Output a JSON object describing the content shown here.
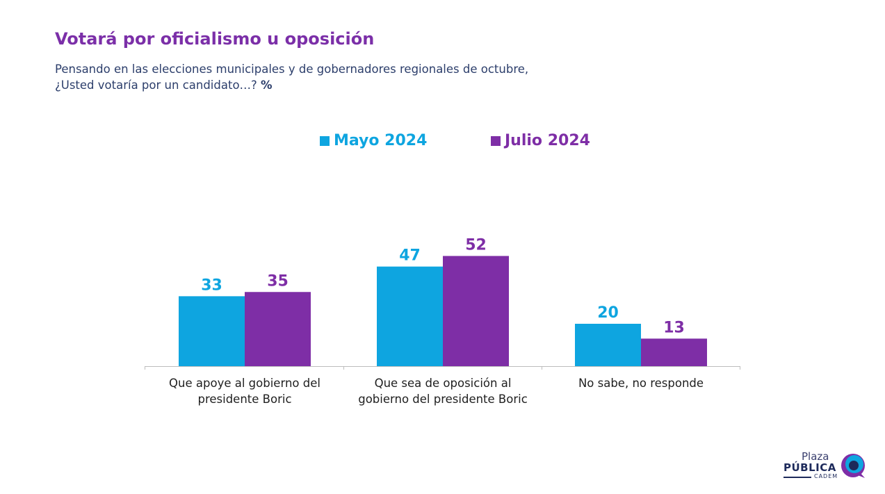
{
  "header": {
    "title": "Votará por oficialismo u oposición",
    "subtitle_line1": "Pensando en las elecciones municipales y de gobernadores regionales de octubre,",
    "subtitle_line2": "¿Usted votaría por un candidato…?",
    "subtitle_unit": "%"
  },
  "colors": {
    "mayo": "#0ea5e0",
    "julio": "#7e2ea6",
    "title": "#7b2fa8",
    "axis": "#bdbdbd"
  },
  "chart_data": {
    "type": "bar",
    "categories": [
      [
        "Que apoye al gobierno del",
        "presidente Boric"
      ],
      [
        "Que sea de oposición al",
        "gobierno del presidente Boric"
      ],
      [
        "No sabe, no responde"
      ]
    ],
    "series": [
      {
        "name": "Mayo 2024",
        "values": [
          33,
          47,
          20
        ]
      },
      {
        "name": "Julio 2024",
        "values": [
          35,
          52,
          13
        ]
      }
    ],
    "ylim": [
      0,
      52
    ],
    "grid": false,
    "legend": "top-center",
    "xlabel": "",
    "ylabel": ""
  },
  "logo": {
    "word1": "Plaza",
    "word2": "PÚBLICA",
    "word3": "CADEM",
    "icon": "cadem-swirl-icon"
  }
}
